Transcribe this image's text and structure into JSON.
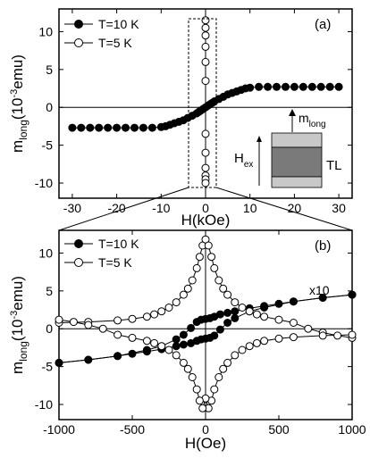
{
  "chart_data": [
    {
      "panel": "(a)",
      "type": "scatter",
      "panel_label": "(a)",
      "xlabel": "H(kOe)",
      "ylabel_main": "m",
      "ylabel_sub": "long",
      "ylabel_unit": "(10",
      "ylabel_exp": "-3",
      "ylabel_tail": "emu)",
      "xlim": [
        -33,
        33
      ],
      "ylim": [
        -12,
        13
      ],
      "xticks": [
        -30,
        -20,
        -10,
        0,
        10,
        20,
        30
      ],
      "yticks": [
        -10,
        -5,
        0,
        5,
        10
      ],
      "grid": false,
      "legend_position": "top-left",
      "series": [
        {
          "name": "T=10 K",
          "marker": "filled-circle",
          "x": [
            -30,
            -28,
            -26,
            -24,
            -22,
            -20,
            -18,
            -16,
            -14,
            -12,
            -10,
            -9,
            -8,
            -7,
            -6,
            -5,
            -4,
            -3,
            -2,
            -1.5,
            -1,
            -0.5,
            0,
            0.5,
            1,
            1.5,
            2,
            3,
            4,
            5,
            6,
            7,
            8,
            9,
            10,
            12,
            14,
            16,
            18,
            20,
            22,
            24,
            26,
            28,
            30
          ],
          "y": [
            -2.7,
            -2.7,
            -2.7,
            -2.7,
            -2.7,
            -2.7,
            -2.7,
            -2.7,
            -2.7,
            -2.7,
            -2.6,
            -2.5,
            -2.3,
            -2.1,
            -1.9,
            -1.7,
            -1.4,
            -1.1,
            -0.8,
            -0.6,
            -0.4,
            -0.2,
            0.0,
            0.2,
            0.4,
            0.6,
            0.8,
            1.1,
            1.4,
            1.7,
            1.9,
            2.1,
            2.3,
            2.5,
            2.6,
            2.7,
            2.7,
            2.7,
            2.7,
            2.7,
            2.7,
            2.7,
            2.7,
            2.7,
            2.7
          ]
        },
        {
          "name": "T=5 K",
          "marker": "open-circle",
          "x": [
            0,
            0,
            0,
            0,
            0,
            0,
            0,
            0,
            0,
            0,
            0,
            0
          ],
          "y": [
            11.5,
            10.5,
            9.5,
            8.0,
            6.0,
            3.5,
            -3.5,
            -6.0,
            -8.0,
            -9.0,
            -9.5,
            -10.0
          ]
        }
      ],
      "inset": {
        "labels": [
          "H",
          "ex",
          "m",
          "long",
          "TL"
        ]
      }
    },
    {
      "panel": "(b)",
      "type": "scatter",
      "panel_label": "(b)",
      "xlabel": "H(Oe)",
      "ylabel_main": "m",
      "ylabel_sub": "long",
      "ylabel_unit": "(10",
      "ylabel_exp": "-3",
      "ylabel_tail": "emu)",
      "annotation": "x10",
      "xlim": [
        -1000,
        1000
      ],
      "ylim": [
        -12,
        13
      ],
      "xticks": [
        -1000,
        -500,
        0,
        500,
        1000
      ],
      "yticks": [
        -10,
        -5,
        0,
        5,
        10
      ],
      "grid": false,
      "legend_position": "top-left",
      "series": [
        {
          "name": "T=10 K",
          "marker": "filled-circle",
          "branches": [
            {
              "x": [
                -1000,
                -800,
                -600,
                -400,
                -300,
                -200,
                -150,
                -100,
                -60,
                -30,
                0,
                30,
                60,
                100,
                150,
                200,
                300,
                400,
                500,
                600,
                800,
                1000
              ],
              "y": [
                -4.5,
                -4.1,
                -3.6,
                -2.8,
                -2.3,
                -1.4,
                -0.8,
                0.1,
                0.9,
                1.2,
                1.3,
                1.4,
                1.6,
                1.9,
                2.1,
                2.3,
                2.7,
                3.0,
                3.3,
                3.6,
                4.1,
                4.5
              ]
            },
            {
              "x": [
                1000,
                800,
                600,
                400,
                300,
                200,
                150,
                100,
                60,
                30,
                0,
                -30,
                -60,
                -100,
                -150,
                -200,
                -300,
                -400,
                -500,
                -600,
                -800,
                -1000
              ],
              "y": [
                4.5,
                4.1,
                3.6,
                2.8,
                2.3,
                1.4,
                0.8,
                -0.1,
                -0.9,
                -1.2,
                -1.3,
                -1.4,
                -1.6,
                -1.9,
                -2.1,
                -2.3,
                -2.7,
                -3.0,
                -3.3,
                -3.6,
                -4.1,
                -4.5
              ]
            }
          ]
        },
        {
          "name": "T=5 K",
          "marker": "open-circle",
          "branches": [
            {
              "x": [
                -1000,
                -800,
                -600,
                -500,
                -400,
                -350,
                -300,
                -250,
                -200,
                -150,
                -120,
                -90,
                -60,
                -40,
                -20,
                0,
                20,
                40,
                60,
                90,
                120,
                150,
                200,
                250,
                300,
                350,
                400,
                500,
                600,
                700,
                800,
                900,
                1000
              ],
              "y": [
                0.8,
                0.9,
                1.1,
                1.3,
                1.6,
                1.9,
                2.3,
                2.8,
                3.5,
                4.5,
                5.3,
                6.4,
                8.0,
                9.5,
                11.0,
                11.8,
                11.0,
                9.5,
                8.0,
                6.4,
                5.3,
                4.5,
                3.5,
                2.8,
                2.3,
                1.9,
                1.6,
                1.2,
                0.8,
                0.0,
                -0.5,
                -0.9,
                -1.2
              ]
            },
            {
              "x": [
                1000,
                800,
                600,
                500,
                400,
                350,
                300,
                250,
                200,
                150,
                120,
                90,
                60,
                40,
                20,
                0,
                -20,
                -40,
                -60,
                -90,
                -120,
                -150,
                -200,
                -250,
                -300,
                -350,
                -400,
                -500,
                -600,
                -700,
                -800,
                -900,
                -1000
              ],
              "y": [
                -0.8,
                -0.9,
                -1.1,
                -1.3,
                -1.6,
                -1.9,
                -2.3,
                -2.8,
                -3.5,
                -4.5,
                -5.3,
                -6.4,
                -8.0,
                -9.5,
                -10.5,
                -9.2,
                -10.5,
                -9.5,
                -8.0,
                -6.4,
                -5.3,
                -4.5,
                -3.5,
                -2.8,
                -2.3,
                -1.9,
                -1.6,
                -1.2,
                -0.8,
                0.0,
                0.5,
                0.9,
                1.2
              ]
            }
          ]
        }
      ]
    }
  ]
}
